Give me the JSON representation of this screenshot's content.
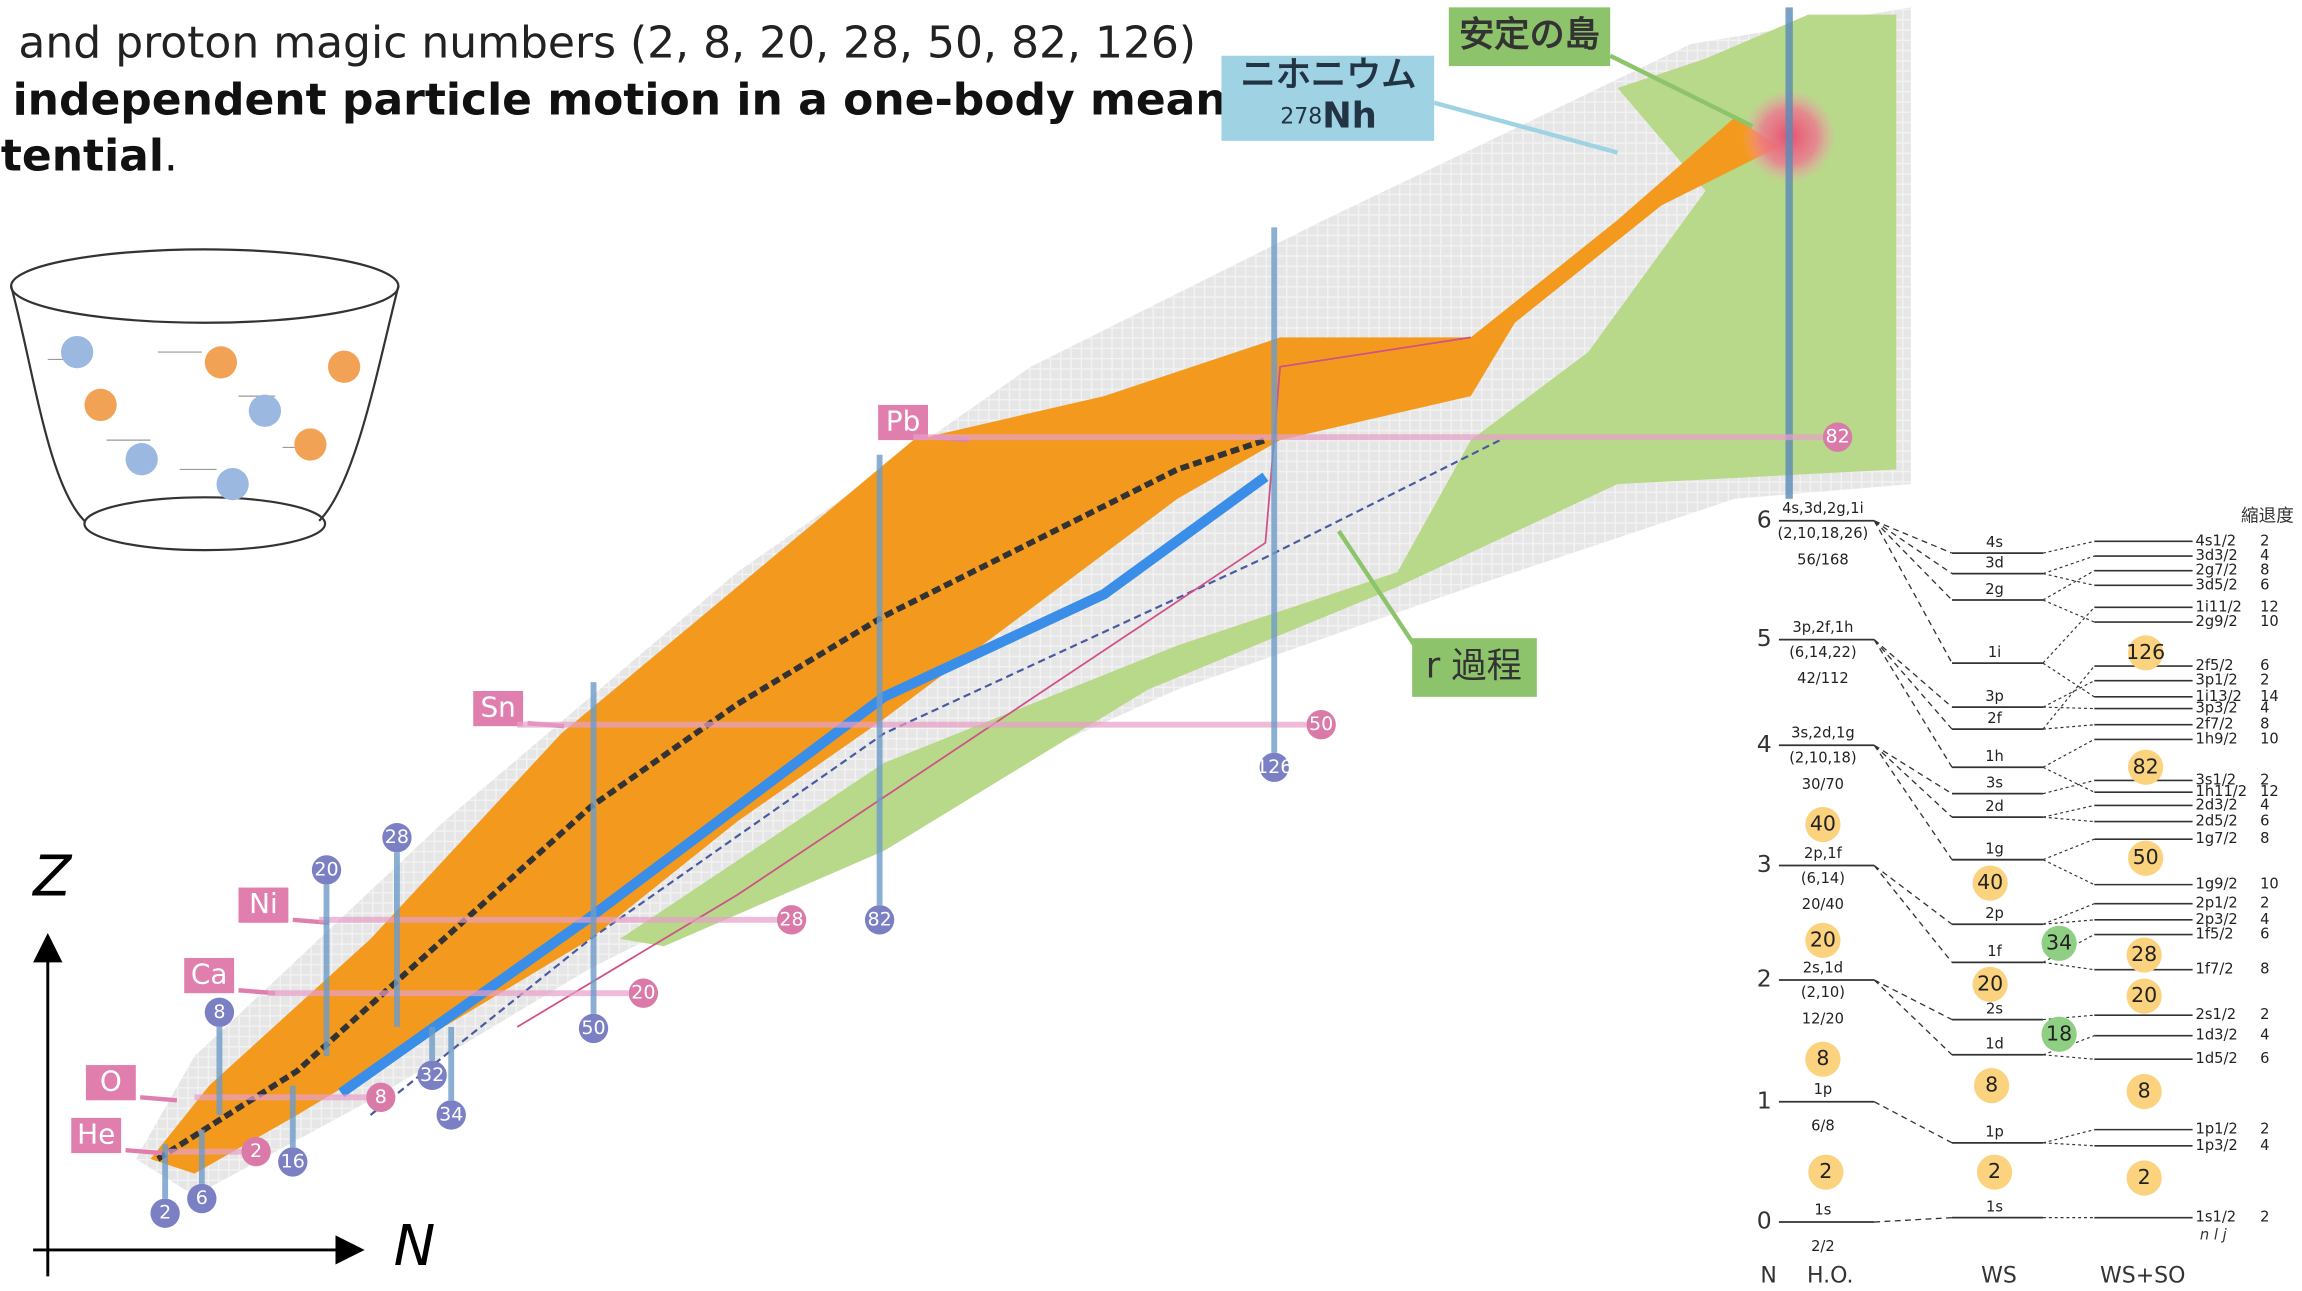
{
  "heading": {
    "line1": "and proton magic numbers (2, 8, 20, 28, 50, 82, 126)",
    "line2": "independent particle motion in a one-body mean",
    "line3": "tential",
    "line3_end": "."
  },
  "nuclear_chart": {
    "island_label": "安定の島",
    "nihonium_label": "ニホニウム",
    "nihonium_mass": "278",
    "nihonium_symbol": "Nh",
    "r_process_label": "r 過程",
    "z_axis": "Z",
    "n_axis": "N",
    "elements": [
      "He",
      "O",
      "Ca",
      "Ni",
      "Sn",
      "Pb"
    ],
    "proton_magic": [
      2,
      8,
      20,
      28,
      50,
      82
    ],
    "neutron_magic": [
      2,
      6,
      8,
      16,
      20,
      28,
      32,
      34,
      50,
      82,
      126
    ]
  },
  "level_scheme": {
    "column_labels": {
      "n": "N",
      "ho": "H.O.",
      "ws": "WS",
      "ws_so": "WS+SO",
      "degeneracy": "縮退度"
    },
    "nlj_label": "n l j",
    "ho_shells": [
      {
        "n": 0,
        "orbits": "1s",
        "occupancy": "2/2"
      },
      {
        "n": 1,
        "orbits": "1p",
        "occupancy": "6/8"
      },
      {
        "n": 2,
        "orbits": "2s,1d",
        "degeneracies": "(2,10)",
        "occupancy": "12/20"
      },
      {
        "n": 3,
        "orbits": "2p,1f",
        "degeneracies": "(6,14)",
        "occupancy": "20/40"
      },
      {
        "n": 4,
        "orbits": "3s,2d,1g",
        "degeneracies": "(2,10,18)",
        "occupancy": "30/70"
      },
      {
        "n": 5,
        "orbits": "3p,2f,1h",
        "degeneracies": "(6,14,22)",
        "occupancy": "42/112"
      },
      {
        "n": 6,
        "orbits": "4s,3d,2g,1i",
        "degeneracies": "(2,10,18,26)",
        "occupancy": "56/168"
      }
    ],
    "ho_magic": [
      2,
      8,
      20,
      40
    ],
    "ws_levels": [
      "1s",
      "1p",
      "1d",
      "2s",
      "1f",
      "2p",
      "1g",
      "2d",
      "3s",
      "1h",
      "2f",
      "3p",
      "1i",
      "2g",
      "3d",
      "4s"
    ],
    "ws_magic": [
      2,
      8,
      20,
      40
    ],
    "ws_so_levels": [
      {
        "label": "1s1/2",
        "degeneracy": 2
      },
      {
        "label": "1p3/2",
        "degeneracy": 4
      },
      {
        "label": "1p1/2",
        "degeneracy": 2
      },
      {
        "label": "1d5/2",
        "degeneracy": 6
      },
      {
        "label": "1d3/2",
        "degeneracy": 4
      },
      {
        "label": "2s1/2",
        "degeneracy": 2
      },
      {
        "label": "1f7/2",
        "degeneracy": 8
      },
      {
        "label": "1f5/2",
        "degeneracy": 6
      },
      {
        "label": "2p3/2",
        "degeneracy": 4
      },
      {
        "label": "2p1/2",
        "degeneracy": 2
      },
      {
        "label": "1g9/2",
        "degeneracy": 10
      },
      {
        "label": "1g7/2",
        "degeneracy": 8
      },
      {
        "label": "2d5/2",
        "degeneracy": 6
      },
      {
        "label": "2d3/2",
        "degeneracy": 4
      },
      {
        "label": "1h11/2",
        "degeneracy": 12
      },
      {
        "label": "3s1/2",
        "degeneracy": 2
      },
      {
        "label": "1h9/2",
        "degeneracy": 10
      },
      {
        "label": "2f7/2",
        "degeneracy": 8
      },
      {
        "label": "3p3/2",
        "degeneracy": 4
      },
      {
        "label": "1i13/2",
        "degeneracy": 14
      },
      {
        "label": "3p1/2",
        "degeneracy": 2
      },
      {
        "label": "2f5/2",
        "degeneracy": 6
      },
      {
        "label": "2g9/2",
        "degeneracy": 10
      },
      {
        "label": "1i11/2",
        "degeneracy": 12
      },
      {
        "label": "3d5/2",
        "degeneracy": 6
      },
      {
        "label": "2g7/2",
        "degeneracy": 8
      },
      {
        "label": "3d3/2",
        "degeneracy": 4
      },
      {
        "label": "4s1/2",
        "degeneracy": 2
      }
    ],
    "ws_so_magic": [
      2,
      8,
      20,
      28,
      50,
      82,
      126
    ],
    "ws_so_green": [
      18,
      34
    ]
  }
}
